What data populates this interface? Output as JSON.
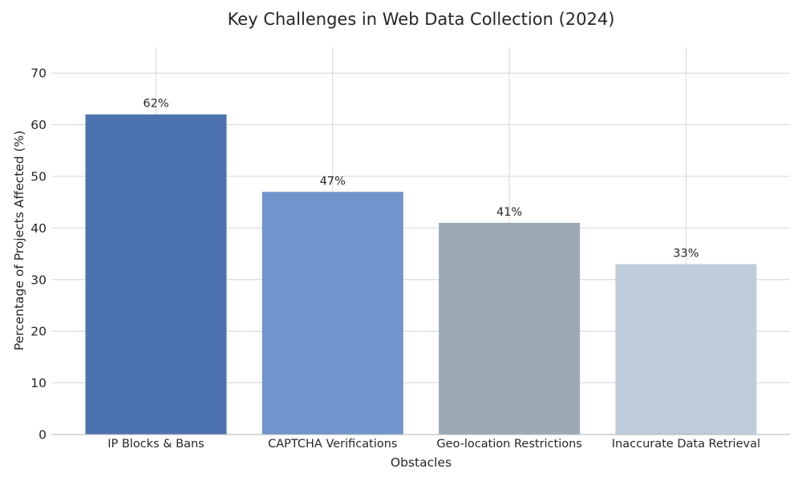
{
  "chart_data": {
    "type": "bar",
    "title": "Key Challenges in Web Data Collection (2024)",
    "xlabel": "Obstacles",
    "ylabel": "Percentage of Projects Affected (%)",
    "categories": [
      "IP Blocks & Bans",
      "CAPTCHA Verifications",
      "Geo-location Restrictions",
      "Inaccurate Data Retrieval"
    ],
    "values": [
      62,
      47,
      41,
      33
    ],
    "data_labels": [
      "62%",
      "47%",
      "41%",
      "33%"
    ],
    "colors": [
      "#4c72b0",
      "#7094cb",
      "#9caab6",
      "#bfcddb"
    ],
    "ylim": [
      0,
      75
    ],
    "yticks": [
      0,
      10,
      20,
      30,
      40,
      50,
      60,
      70
    ],
    "grid": true,
    "legend": "none"
  }
}
